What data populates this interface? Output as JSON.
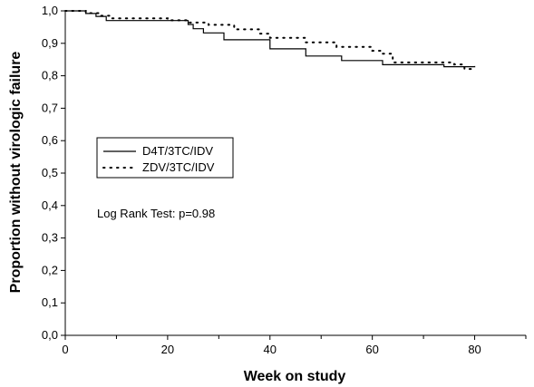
{
  "chart_data": {
    "type": "line",
    "title": "",
    "xlabel": "Week on study",
    "ylabel": "Proportion without virologic failure",
    "xlim": [
      0,
      90
    ],
    "ylim": [
      0,
      1
    ],
    "x_ticks": [
      0,
      20,
      40,
      60,
      80
    ],
    "x_tick_labels": [
      "0",
      "20",
      "40",
      "60",
      "80"
    ],
    "y_ticks": [
      0,
      0.1,
      0.2,
      0.3,
      0.4,
      0.5,
      0.6,
      0.7,
      0.8,
      0.9,
      1.0
    ],
    "y_tick_labels": [
      "0,0",
      "0,1",
      "0,2",
      "0,3",
      "0,4",
      "0,5",
      "0,6",
      "0,7",
      "0,8",
      "0,9",
      "1,0"
    ],
    "grid": false,
    "legend_position": "middle-left",
    "annotation": "Log Rank Test: p=0.98",
    "series": [
      {
        "name": "D4T/3TC/IDV",
        "style": "solid",
        "x": [
          0,
          4,
          6,
          8,
          24,
          25,
          27,
          31,
          40,
          47,
          54,
          62,
          74,
          80
        ],
        "y": [
          1.0,
          0.992,
          0.983,
          0.97,
          0.958,
          0.945,
          0.932,
          0.911,
          0.883,
          0.861,
          0.847,
          0.834,
          0.828,
          0.83
        ]
      },
      {
        "name": "ZDV/3TC/IDV",
        "style": "dotted",
        "x": [
          0,
          4,
          7,
          9,
          20,
          24,
          28,
          33,
          38,
          40,
          47,
          53,
          60,
          62,
          64,
          76,
          78,
          80
        ],
        "y": [
          1.0,
          0.993,
          0.985,
          0.977,
          0.971,
          0.964,
          0.957,
          0.943,
          0.93,
          0.917,
          0.903,
          0.889,
          0.877,
          0.868,
          0.841,
          0.835,
          0.821,
          0.821
        ]
      }
    ]
  }
}
